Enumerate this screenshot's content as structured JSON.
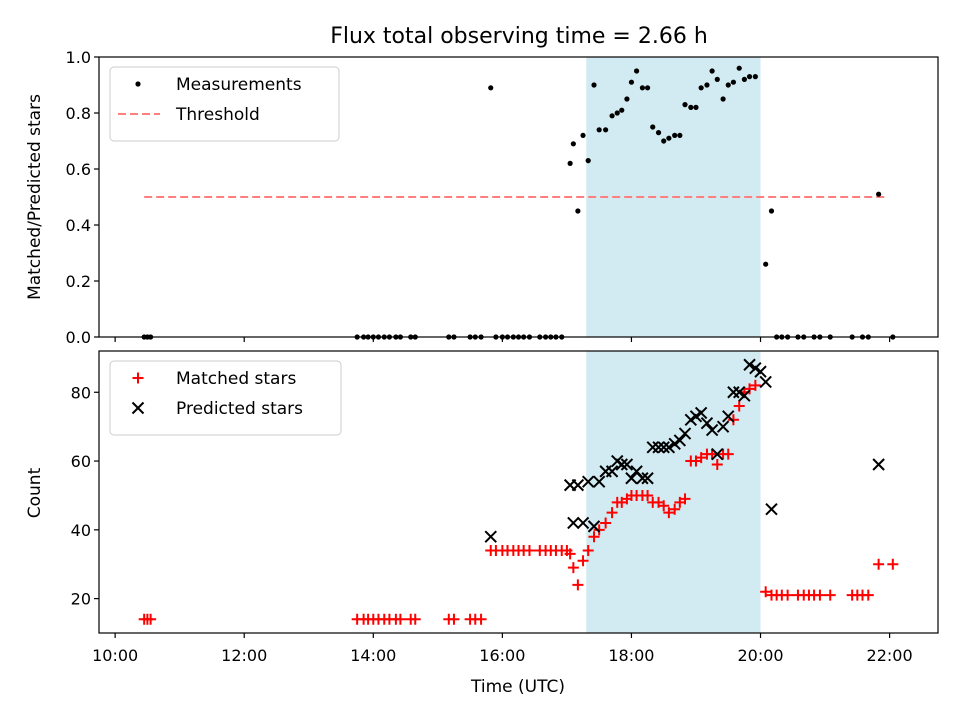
{
  "title": "Flux total observing time = 2.66 h",
  "colors": {
    "measurements": "#000000",
    "threshold": "#ff7f7f",
    "matched": "#ff0000",
    "predicted": "#000000",
    "shade": "#add8e6"
  },
  "chart_data": [
    {
      "type": "scatter",
      "ylabel": "Matched/Predicted stars",
      "xlabel": "",
      "xlim": [
        9.75,
        22.75
      ],
      "ylim": [
        0,
        1.0
      ],
      "yticks": [
        "0.0",
        "0.2",
        "0.4",
        "0.6",
        "0.8",
        "1.0"
      ],
      "shaded_region": [
        17.3,
        20.0
      ],
      "legend_position": "upper-left",
      "threshold": {
        "name": "Threshold",
        "x": [
          10.45,
          21.95
        ],
        "y": 0.5
      },
      "series": [
        {
          "name": "Measurements",
          "marker": "dot",
          "points": [
            [
              10.45,
              0
            ],
            [
              10.5,
              0
            ],
            [
              10.55,
              0
            ],
            [
              13.75,
              0
            ],
            [
              13.85,
              0
            ],
            [
              13.92,
              0
            ],
            [
              14.0,
              0
            ],
            [
              14.08,
              0
            ],
            [
              14.17,
              0
            ],
            [
              14.25,
              0
            ],
            [
              14.35,
              0
            ],
            [
              14.42,
              0
            ],
            [
              14.58,
              0
            ],
            [
              14.65,
              0
            ],
            [
              15.17,
              0
            ],
            [
              15.25,
              0
            ],
            [
              15.5,
              0
            ],
            [
              15.58,
              0
            ],
            [
              15.67,
              0
            ],
            [
              15.82,
              0.89
            ],
            [
              15.9,
              0
            ],
            [
              16.0,
              0
            ],
            [
              16.08,
              0
            ],
            [
              16.17,
              0
            ],
            [
              16.25,
              0
            ],
            [
              16.33,
              0
            ],
            [
              16.42,
              0
            ],
            [
              16.58,
              0
            ],
            [
              16.67,
              0
            ],
            [
              16.75,
              0
            ],
            [
              16.83,
              0
            ],
            [
              16.92,
              0
            ],
            [
              17.05,
              0.62
            ],
            [
              17.1,
              0.69
            ],
            [
              17.17,
              0.45
            ],
            [
              17.25,
              0.72
            ],
            [
              17.33,
              0.63
            ],
            [
              17.42,
              0.9
            ],
            [
              17.5,
              0.74
            ],
            [
              17.6,
              0.74
            ],
            [
              17.7,
              0.79
            ],
            [
              17.78,
              0.8
            ],
            [
              17.85,
              0.81
            ],
            [
              17.93,
              0.85
            ],
            [
              18.0,
              0.91
            ],
            [
              18.08,
              0.95
            ],
            [
              18.17,
              0.89
            ],
            [
              18.25,
              0.89
            ],
            [
              18.33,
              0.75
            ],
            [
              18.42,
              0.73
            ],
            [
              18.5,
              0.7
            ],
            [
              18.58,
              0.71
            ],
            [
              18.67,
              0.72
            ],
            [
              18.75,
              0.72
            ],
            [
              18.83,
              0.83
            ],
            [
              18.92,
              0.82
            ],
            [
              19.0,
              0.82
            ],
            [
              19.08,
              0.89
            ],
            [
              19.17,
              0.9
            ],
            [
              19.25,
              0.95
            ],
            [
              19.33,
              0.92
            ],
            [
              19.42,
              0.85
            ],
            [
              19.5,
              0.9
            ],
            [
              19.58,
              0.91
            ],
            [
              19.67,
              0.96
            ],
            [
              19.75,
              0.92
            ],
            [
              19.83,
              0.93
            ],
            [
              19.92,
              0.93
            ],
            [
              20.08,
              0.26
            ],
            [
              20.17,
              0.45
            ],
            [
              20.25,
              0
            ],
            [
              20.33,
              0
            ],
            [
              20.42,
              0
            ],
            [
              20.58,
              0
            ],
            [
              20.67,
              0
            ],
            [
              20.83,
              0
            ],
            [
              20.92,
              0
            ],
            [
              21.08,
              0
            ],
            [
              21.42,
              0
            ],
            [
              21.58,
              0
            ],
            [
              21.67,
              0
            ],
            [
              21.83,
              0.51
            ],
            [
              22.05,
              0
            ]
          ]
        }
      ]
    },
    {
      "type": "scatter",
      "ylabel": "Count",
      "xlabel": "Time (UTC)",
      "xlim": [
        9.75,
        22.75
      ],
      "ylim": [
        10,
        92
      ],
      "xticks": [
        {
          "v": 10,
          "label": "10:00"
        },
        {
          "v": 12,
          "label": "12:00"
        },
        {
          "v": 14,
          "label": "14:00"
        },
        {
          "v": 16,
          "label": "16:00"
        },
        {
          "v": 18,
          "label": "18:00"
        },
        {
          "v": 20,
          "label": "20:00"
        },
        {
          "v": 22,
          "label": "22:00"
        }
      ],
      "yticks": [
        "20",
        "40",
        "60",
        "80"
      ],
      "shaded_region": [
        17.3,
        20.0
      ],
      "legend_position": "upper-left",
      "series": [
        {
          "name": "Matched stars",
          "marker": "plus",
          "points": [
            [
              10.45,
              14
            ],
            [
              10.5,
              14
            ],
            [
              10.55,
              14
            ],
            [
              13.75,
              14
            ],
            [
              13.85,
              14
            ],
            [
              13.92,
              14
            ],
            [
              14.0,
              14
            ],
            [
              14.08,
              14
            ],
            [
              14.17,
              14
            ],
            [
              14.25,
              14
            ],
            [
              14.35,
              14
            ],
            [
              14.42,
              14
            ],
            [
              14.58,
              14
            ],
            [
              14.65,
              14
            ],
            [
              15.17,
              14
            ],
            [
              15.25,
              14
            ],
            [
              15.5,
              14
            ],
            [
              15.58,
              14
            ],
            [
              15.67,
              14
            ],
            [
              15.82,
              34
            ],
            [
              15.9,
              34
            ],
            [
              16.0,
              34
            ],
            [
              16.08,
              34
            ],
            [
              16.17,
              34
            ],
            [
              16.25,
              34
            ],
            [
              16.33,
              34
            ],
            [
              16.42,
              34
            ],
            [
              16.58,
              34
            ],
            [
              16.67,
              34
            ],
            [
              16.75,
              34
            ],
            [
              16.83,
              34
            ],
            [
              16.92,
              34
            ],
            [
              17.0,
              34
            ],
            [
              17.05,
              33
            ],
            [
              17.1,
              29
            ],
            [
              17.17,
              24
            ],
            [
              17.25,
              31
            ],
            [
              17.33,
              34
            ],
            [
              17.42,
              38
            ],
            [
              17.5,
              40
            ],
            [
              17.6,
              42
            ],
            [
              17.7,
              45
            ],
            [
              17.78,
              48
            ],
            [
              17.85,
              48
            ],
            [
              17.93,
              49
            ],
            [
              18.0,
              50
            ],
            [
              18.08,
              50
            ],
            [
              18.17,
              50
            ],
            [
              18.25,
              50
            ],
            [
              18.33,
              48
            ],
            [
              18.42,
              48
            ],
            [
              18.5,
              47
            ],
            [
              18.58,
              45
            ],
            [
              18.67,
              46
            ],
            [
              18.75,
              48
            ],
            [
              18.83,
              49
            ],
            [
              18.92,
              60
            ],
            [
              19.0,
              60
            ],
            [
              19.08,
              61
            ],
            [
              19.17,
              62
            ],
            [
              19.25,
              62
            ],
            [
              19.33,
              59
            ],
            [
              19.42,
              62
            ],
            [
              19.5,
              62
            ],
            [
              19.58,
              72
            ],
            [
              19.67,
              76
            ],
            [
              19.75,
              80
            ],
            [
              19.83,
              81
            ],
            [
              19.92,
              82
            ],
            [
              20.08,
              22
            ],
            [
              20.17,
              21
            ],
            [
              20.25,
              21
            ],
            [
              20.33,
              21
            ],
            [
              20.42,
              21
            ],
            [
              20.58,
              21
            ],
            [
              20.67,
              21
            ],
            [
              20.75,
              21
            ],
            [
              20.83,
              21
            ],
            [
              20.92,
              21
            ],
            [
              21.08,
              21
            ],
            [
              21.42,
              21
            ],
            [
              21.5,
              21
            ],
            [
              21.58,
              21
            ],
            [
              21.67,
              21
            ],
            [
              21.83,
              30
            ],
            [
              22.05,
              30
            ]
          ]
        },
        {
          "name": "Predicted stars",
          "marker": "x",
          "points": [
            [
              15.82,
              38
            ],
            [
              17.05,
              53
            ],
            [
              17.1,
              42
            ],
            [
              17.17,
              53
            ],
            [
              17.25,
              42
            ],
            [
              17.33,
              54
            ],
            [
              17.42,
              41
            ],
            [
              17.5,
              54
            ],
            [
              17.6,
              57
            ],
            [
              17.7,
              57
            ],
            [
              17.78,
              60
            ],
            [
              17.85,
              59
            ],
            [
              17.93,
              59
            ],
            [
              18.0,
              55
            ],
            [
              18.08,
              57
            ],
            [
              18.17,
              55
            ],
            [
              18.25,
              55
            ],
            [
              18.33,
              64
            ],
            [
              18.42,
              64
            ],
            [
              18.5,
              64
            ],
            [
              18.58,
              64
            ],
            [
              18.67,
              65
            ],
            [
              18.75,
              66
            ],
            [
              18.83,
              68
            ],
            [
              18.92,
              72
            ],
            [
              19.0,
              73
            ],
            [
              19.08,
              74
            ],
            [
              19.17,
              71
            ],
            [
              19.25,
              69
            ],
            [
              19.33,
              62
            ],
            [
              19.42,
              70
            ],
            [
              19.5,
              73
            ],
            [
              19.58,
              80
            ],
            [
              19.67,
              80
            ],
            [
              19.75,
              79
            ],
            [
              19.83,
              88
            ],
            [
              19.92,
              87
            ],
            [
              20.0,
              86
            ],
            [
              20.08,
              83
            ],
            [
              20.17,
              46
            ],
            [
              21.83,
              59
            ]
          ]
        }
      ]
    }
  ]
}
